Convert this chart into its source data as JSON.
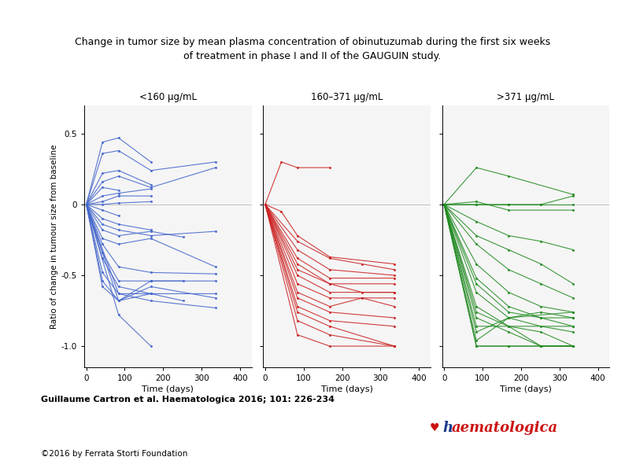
{
  "title_line1": "Change in tumor size by mean plasma concentration of obinutuzumab during the first six weeks",
  "title_line2": "of treatment in phase I and II of the GAUGUIN study.",
  "citation": "Guillaume Cartron et al. Haematologica 2016; 101: 226-234",
  "copyright": "©2016 by Ferrata Storti Foundation",
  "panel_titles": [
    "<160 μg/mL",
    "160–371 μg/mL",
    ">371 μg/mL"
  ],
  "xlabel": "Time (days)",
  "ylabel": "Ratio of change in tumour size from baseline",
  "ylim": [
    -1.15,
    0.7
  ],
  "xlim": [
    -5,
    430
  ],
  "yticks": [
    -1.0,
    -0.5,
    0.0,
    0.5
  ],
  "ytick_labels": [
    "-1.0",
    "-0.5",
    "0",
    "0.5"
  ],
  "xticks": [
    0,
    100,
    200,
    300,
    400
  ],
  "colors": [
    "#4466cc",
    "#cc2222",
    "#228B22"
  ],
  "blue_patients": [
    [
      [
        0,
        0.0
      ],
      [
        42,
        0.44
      ],
      [
        84,
        0.47
      ],
      [
        168,
        0.3
      ]
    ],
    [
      [
        0,
        0.0
      ],
      [
        42,
        0.36
      ],
      [
        84,
        0.38
      ],
      [
        168,
        0.24
      ],
      [
        336,
        0.3
      ]
    ],
    [
      [
        0,
        0.0
      ],
      [
        42,
        0.22
      ],
      [
        84,
        0.24
      ],
      [
        168,
        0.14
      ]
    ],
    [
      [
        0,
        0.0
      ],
      [
        42,
        0.16
      ],
      [
        84,
        0.2
      ],
      [
        168,
        0.12
      ],
      [
        336,
        0.26
      ]
    ],
    [
      [
        0,
        0.0
      ],
      [
        42,
        0.12
      ],
      [
        84,
        0.1
      ]
    ],
    [
      [
        0,
        0.0
      ],
      [
        42,
        0.06
      ],
      [
        84,
        0.08
      ],
      [
        168,
        0.11
      ]
    ],
    [
      [
        0,
        0.0
      ],
      [
        42,
        0.02
      ],
      [
        84,
        0.06
      ],
      [
        168,
        0.06
      ]
    ],
    [
      [
        0,
        0.0
      ],
      [
        42,
        0.0
      ],
      [
        84,
        0.01
      ],
      [
        168,
        0.02
      ]
    ],
    [
      [
        0,
        0.0
      ],
      [
        42,
        -0.04
      ],
      [
        84,
        -0.08
      ]
    ],
    [
      [
        0,
        0.0
      ],
      [
        42,
        -0.1
      ],
      [
        84,
        -0.14
      ],
      [
        168,
        -0.18
      ]
    ],
    [
      [
        0,
        0.0
      ],
      [
        42,
        -0.14
      ],
      [
        84,
        -0.18
      ],
      [
        168,
        -0.22
      ],
      [
        336,
        -0.19
      ]
    ],
    [
      [
        0,
        0.0
      ],
      [
        42,
        -0.18
      ],
      [
        84,
        -0.22
      ],
      [
        168,
        -0.19
      ],
      [
        252,
        -0.23
      ]
    ],
    [
      [
        0,
        0.0
      ],
      [
        42,
        -0.24
      ],
      [
        84,
        -0.28
      ],
      [
        168,
        -0.24
      ],
      [
        336,
        -0.44
      ]
    ],
    [
      [
        0,
        0.0
      ],
      [
        42,
        -0.28
      ],
      [
        84,
        -0.44
      ],
      [
        168,
        -0.48
      ],
      [
        336,
        -0.49
      ]
    ],
    [
      [
        0,
        0.0
      ],
      [
        42,
        -0.34
      ],
      [
        84,
        -0.54
      ],
      [
        168,
        -0.54
      ],
      [
        252,
        -0.54
      ]
    ],
    [
      [
        0,
        0.0
      ],
      [
        42,
        -0.38
      ],
      [
        84,
        -0.58
      ],
      [
        168,
        -0.63
      ]
    ],
    [
      [
        0,
        0.0
      ],
      [
        42,
        -0.48
      ],
      [
        84,
        -0.63
      ],
      [
        168,
        -0.63
      ],
      [
        336,
        -0.63
      ]
    ],
    [
      [
        0,
        0.0
      ],
      [
        42,
        -0.54
      ],
      [
        84,
        -0.68
      ],
      [
        168,
        -0.63
      ],
      [
        252,
        -0.68
      ]
    ],
    [
      [
        0,
        0.0
      ],
      [
        42,
        -0.58
      ],
      [
        84,
        -0.68
      ],
      [
        168,
        -0.58
      ],
      [
        336,
        -0.66
      ]
    ],
    [
      [
        0,
        0.0
      ],
      [
        84,
        -0.78
      ],
      [
        168,
        -1.0
      ]
    ],
    [
      [
        0,
        0.0
      ],
      [
        84,
        -0.63
      ],
      [
        168,
        -0.68
      ],
      [
        336,
        -0.73
      ]
    ],
    [
      [
        0,
        0.0
      ],
      [
        84,
        -0.68
      ],
      [
        168,
        -0.54
      ],
      [
        336,
        -0.54
      ]
    ]
  ],
  "red_patients": [
    [
      [
        0,
        0.0
      ],
      [
        42,
        0.3
      ],
      [
        84,
        0.26
      ],
      [
        168,
        0.26
      ]
    ],
    [
      [
        0,
        0.0
      ],
      [
        42,
        -0.05
      ],
      [
        84,
        -0.22
      ],
      [
        168,
        -0.37
      ],
      [
        336,
        -0.42
      ]
    ],
    [
      [
        0,
        0.0
      ],
      [
        84,
        -0.26
      ],
      [
        168,
        -0.38
      ],
      [
        252,
        -0.42
      ],
      [
        336,
        -0.46
      ]
    ],
    [
      [
        0,
        0.0
      ],
      [
        84,
        -0.32
      ],
      [
        168,
        -0.46
      ],
      [
        336,
        -0.5
      ]
    ],
    [
      [
        0,
        0.0
      ],
      [
        84,
        -0.38
      ],
      [
        168,
        -0.52
      ],
      [
        336,
        -0.52
      ]
    ],
    [
      [
        0,
        0.0
      ],
      [
        84,
        -0.42
      ],
      [
        168,
        -0.56
      ],
      [
        336,
        -0.56
      ]
    ],
    [
      [
        0,
        0.0
      ],
      [
        84,
        -0.46
      ],
      [
        168,
        -0.56
      ],
      [
        252,
        -0.62
      ],
      [
        336,
        -0.62
      ]
    ],
    [
      [
        0,
        0.0
      ],
      [
        84,
        -0.5
      ],
      [
        168,
        -0.62
      ],
      [
        336,
        -0.62
      ]
    ],
    [
      [
        0,
        0.0
      ],
      [
        84,
        -0.56
      ],
      [
        168,
        -0.66
      ],
      [
        336,
        -0.66
      ]
    ],
    [
      [
        0,
        0.0
      ],
      [
        84,
        -0.62
      ],
      [
        168,
        -0.72
      ],
      [
        252,
        -0.66
      ],
      [
        336,
        -0.72
      ]
    ],
    [
      [
        0,
        0.0
      ],
      [
        84,
        -0.66
      ],
      [
        168,
        -0.76
      ],
      [
        336,
        -0.8
      ]
    ],
    [
      [
        0,
        0.0
      ],
      [
        84,
        -0.72
      ],
      [
        168,
        -0.82
      ],
      [
        336,
        -0.86
      ]
    ],
    [
      [
        0,
        0.0
      ],
      [
        84,
        -0.76
      ],
      [
        168,
        -0.86
      ],
      [
        336,
        -1.0
      ]
    ],
    [
      [
        0,
        0.0
      ],
      [
        84,
        -0.82
      ],
      [
        168,
        -0.92
      ],
      [
        336,
        -1.0
      ]
    ],
    [
      [
        0,
        0.0
      ],
      [
        84,
        -0.92
      ],
      [
        168,
        -1.0
      ],
      [
        336,
        -1.0
      ]
    ]
  ],
  "green_patients": [
    [
      [
        0,
        0.0
      ],
      [
        84,
        0.0
      ],
      [
        168,
        0.0
      ],
      [
        252,
        0.0
      ],
      [
        336,
        0.06
      ]
    ],
    [
      [
        0,
        0.0
      ],
      [
        84,
        0.0
      ],
      [
        168,
        0.0
      ],
      [
        252,
        0.0
      ],
      [
        336,
        0.0
      ]
    ],
    [
      [
        0,
        0.0
      ],
      [
        84,
        0.26
      ],
      [
        168,
        0.2
      ],
      [
        336,
        0.07
      ]
    ],
    [
      [
        0,
        0.0
      ],
      [
        84,
        0.02
      ],
      [
        168,
        -0.04
      ],
      [
        336,
        -0.04
      ]
    ],
    [
      [
        0,
        0.0
      ],
      [
        84,
        -0.12
      ],
      [
        168,
        -0.22
      ],
      [
        252,
        -0.26
      ],
      [
        336,
        -0.32
      ]
    ],
    [
      [
        0,
        0.0
      ],
      [
        84,
        -0.22
      ],
      [
        168,
        -0.32
      ],
      [
        252,
        -0.42
      ],
      [
        336,
        -0.56
      ]
    ],
    [
      [
        0,
        0.0
      ],
      [
        84,
        -0.28
      ],
      [
        168,
        -0.46
      ],
      [
        252,
        -0.56
      ],
      [
        336,
        -0.66
      ]
    ],
    [
      [
        0,
        0.0
      ],
      [
        84,
        -0.42
      ],
      [
        168,
        -0.62
      ],
      [
        252,
        -0.72
      ],
      [
        336,
        -0.76
      ]
    ],
    [
      [
        0,
        0.0
      ],
      [
        84,
        -0.52
      ],
      [
        168,
        -0.72
      ],
      [
        252,
        -0.8
      ],
      [
        336,
        -0.8
      ]
    ],
    [
      [
        0,
        0.0
      ],
      [
        84,
        -0.56
      ],
      [
        168,
        -0.76
      ],
      [
        252,
        -0.8
      ],
      [
        336,
        -0.86
      ]
    ],
    [
      [
        0,
        0.0
      ],
      [
        84,
        -0.62
      ],
      [
        168,
        -0.8
      ],
      [
        252,
        -0.86
      ],
      [
        336,
        -0.9
      ]
    ],
    [
      [
        0,
        0.0
      ],
      [
        84,
        -0.72
      ],
      [
        168,
        -0.86
      ],
      [
        252,
        -0.9
      ],
      [
        336,
        -1.0
      ]
    ],
    [
      [
        0,
        0.0
      ],
      [
        84,
        -0.76
      ],
      [
        168,
        -0.86
      ],
      [
        252,
        -1.0
      ],
      [
        336,
        -1.0
      ]
    ],
    [
      [
        0,
        0.0
      ],
      [
        84,
        -0.8
      ],
      [
        168,
        -0.9
      ],
      [
        252,
        -1.0
      ],
      [
        336,
        -1.0
      ]
    ],
    [
      [
        0,
        0.0
      ],
      [
        84,
        -0.86
      ],
      [
        168,
        -0.86
      ],
      [
        336,
        -0.86
      ]
    ],
    [
      [
        0,
        0.0
      ],
      [
        84,
        -0.9
      ],
      [
        168,
        -0.8
      ],
      [
        252,
        -0.76
      ],
      [
        336,
        -0.8
      ]
    ],
    [
      [
        0,
        0.0
      ],
      [
        84,
        -0.96
      ],
      [
        168,
        -0.8
      ],
      [
        336,
        -0.76
      ]
    ],
    [
      [
        0,
        0.0
      ],
      [
        84,
        -1.0
      ],
      [
        168,
        -1.0
      ],
      [
        336,
        -1.0
      ]
    ],
    [
      [
        0,
        0.0
      ],
      [
        84,
        -1.0
      ],
      [
        168,
        -1.0
      ],
      [
        252,
        -1.0
      ],
      [
        336,
        -1.0
      ]
    ]
  ]
}
